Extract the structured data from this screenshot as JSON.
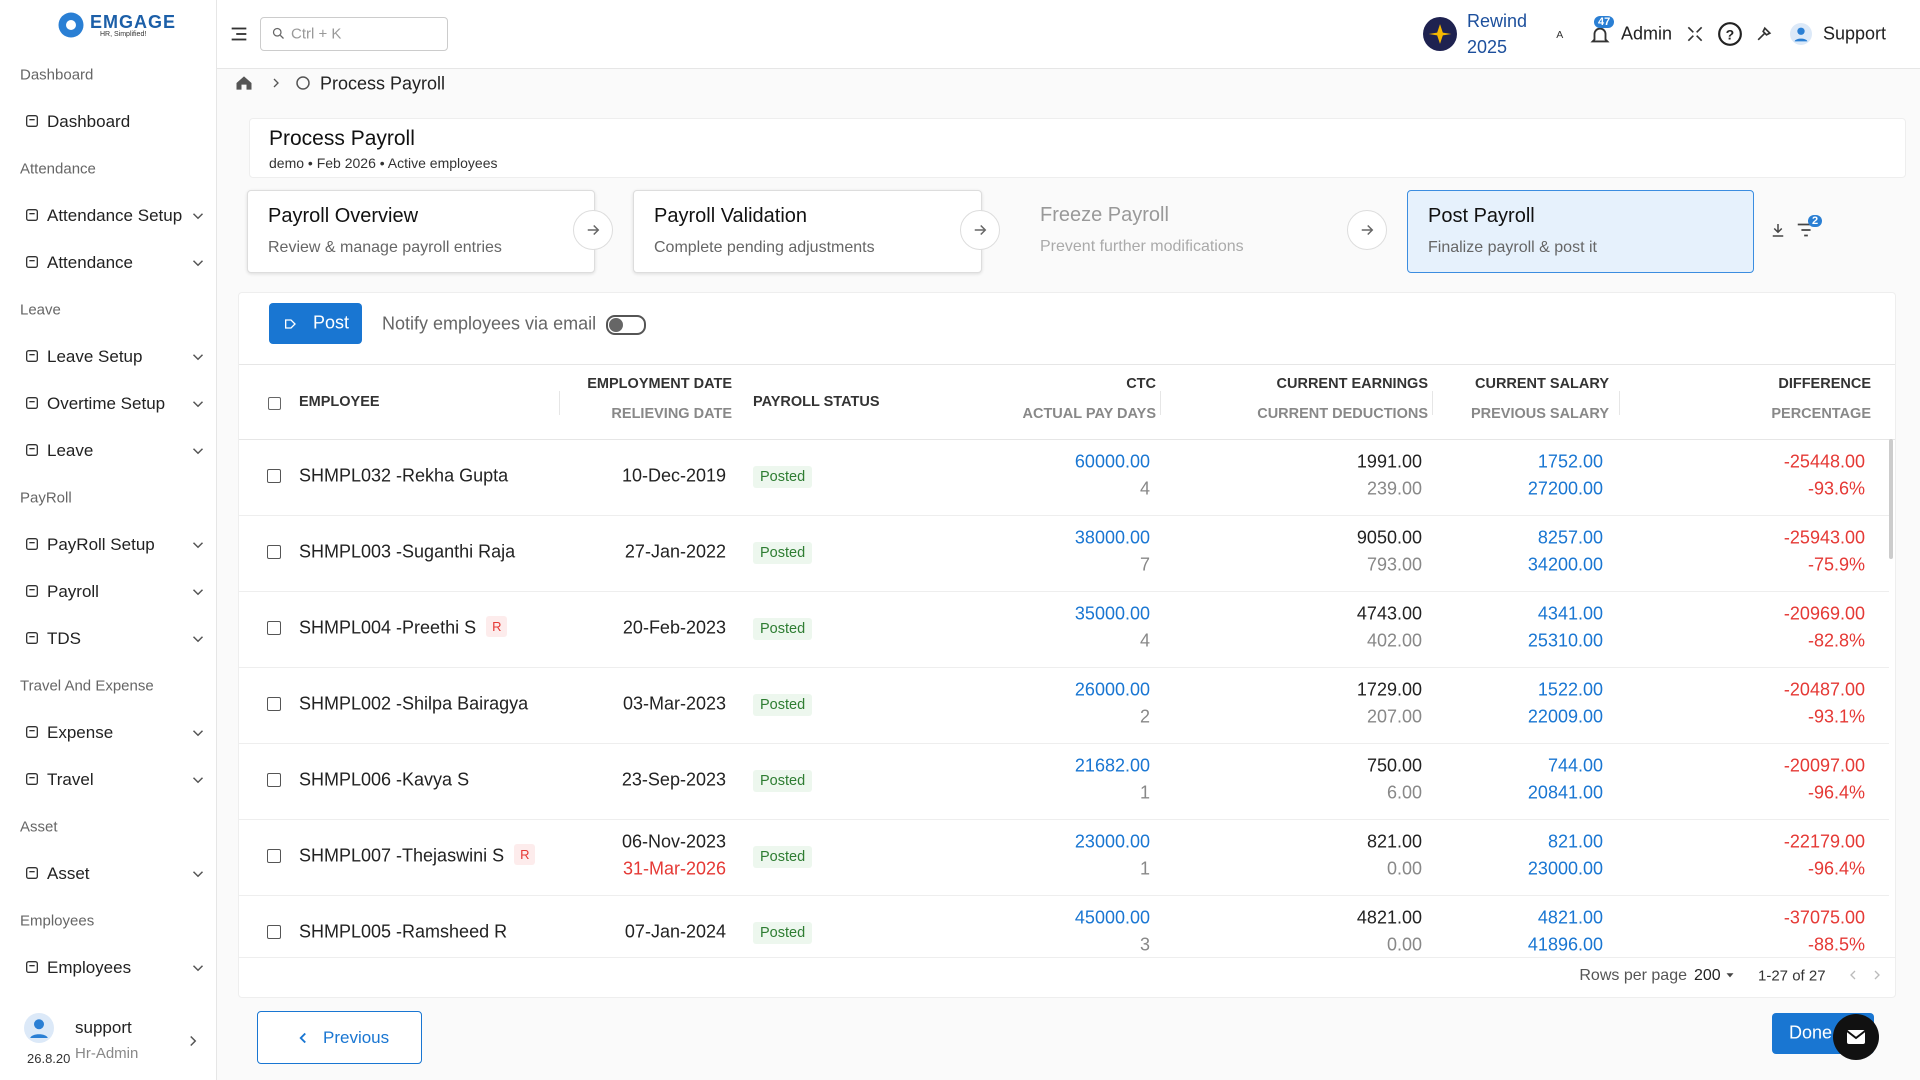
{
  "sidebar": {
    "logo": "EMGAGE",
    "tagline": "HR, Simplified!",
    "sections": [
      {
        "title": "Dashboard",
        "items": [
          {
            "label": "Dashboard",
            "expandable": false
          }
        ]
      },
      {
        "title": "Attendance",
        "items": [
          {
            "label": "Attendance Setup",
            "expandable": true
          },
          {
            "label": "Attendance",
            "expandable": true
          }
        ]
      },
      {
        "title": "Leave",
        "items": [
          {
            "label": "Leave Setup",
            "expandable": true
          },
          {
            "label": "Overtime Setup",
            "expandable": true
          },
          {
            "label": "Leave",
            "expandable": true
          }
        ]
      },
      {
        "title": "PayRoll",
        "items": [
          {
            "label": "PayRoll Setup",
            "expandable": true
          },
          {
            "label": "Payroll",
            "expandable": true
          },
          {
            "label": "TDS",
            "expandable": true
          }
        ]
      },
      {
        "title": "Travel And Expense",
        "items": [
          {
            "label": "Expense",
            "expandable": true
          },
          {
            "label": "Travel",
            "expandable": true
          }
        ]
      },
      {
        "title": "Asset",
        "items": [
          {
            "label": "Asset",
            "expandable": true
          }
        ]
      },
      {
        "title": "Employees",
        "items": [
          {
            "label": "Employees",
            "expandable": true
          }
        ]
      }
    ],
    "user": {
      "name": "support",
      "role": "Hr-Admin",
      "version": "26.8.20"
    }
  },
  "topbar": {
    "search_placeholder": "Ctrl + K",
    "rewind": "Rewind",
    "rewind_year": "2025",
    "notifications": "47",
    "admin": "Admin",
    "support": "Support"
  },
  "breadcrumb": "Process Payroll",
  "header": {
    "title": "Process Payroll",
    "subtitle": "demo • Feb 2026 • Active employees"
  },
  "steps": [
    {
      "title": "Payroll Overview",
      "description": "Review & manage payroll entries",
      "state": "done"
    },
    {
      "title": "Payroll Validation",
      "description": "Complete pending adjustments",
      "state": "done"
    },
    {
      "title": "Freeze Payroll",
      "description": "Prevent further modifications",
      "state": "skipped"
    },
    {
      "title": "Post Payroll",
      "description": "Finalize payroll & post it",
      "state": "active"
    }
  ],
  "filter_count": "2",
  "toolbar": {
    "post": "Post",
    "notify": "Notify employees via email"
  },
  "table": {
    "columns": [
      {
        "label": "EMPLOYEE"
      },
      {
        "label": "EMPLOYMENT DATE",
        "sublabel": "RELIEVING DATE"
      },
      {
        "label": "PAYROLL STATUS"
      },
      {
        "label": "CTC",
        "sublabel": "ACTUAL PAY DAYS"
      },
      {
        "label": "CURRENT EARNINGS",
        "sublabel": "CURRENT DEDUCTIONS"
      },
      {
        "label": "CURRENT SALARY",
        "sublabel": "PREVIOUS SALARY"
      },
      {
        "label": "DIFFERENCE",
        "sublabel": "PERCENTAGE"
      }
    ],
    "rows": [
      {
        "employee": "SHMPL032 -Rekha Gupta",
        "employment_date": "10-Dec-2019",
        "status": "Posted",
        "ctc": "60000.00",
        "pay_days": "4",
        "earnings": "1991.00",
        "deductions": "239.00",
        "current_salary": "1752.00",
        "previous_salary": "27200.00",
        "difference": "-25448.00",
        "percentage": "-93.6%"
      },
      {
        "employee": "SHMPL003 -Suganthi Raja",
        "employment_date": "27-Jan-2022",
        "status": "Posted",
        "ctc": "38000.00",
        "pay_days": "7",
        "earnings": "9050.00",
        "deductions": "793.00",
        "current_salary": "8257.00",
        "previous_salary": "34200.00",
        "difference": "-25943.00",
        "percentage": "-75.9%"
      },
      {
        "employee": "SHMPL004 -Preethi S",
        "badge": "R",
        "employment_date": "20-Feb-2023",
        "status": "Posted",
        "ctc": "35000.00",
        "pay_days": "4",
        "earnings": "4743.00",
        "deductions": "402.00",
        "current_salary": "4341.00",
        "previous_salary": "25310.00",
        "difference": "-20969.00",
        "percentage": "-82.8%"
      },
      {
        "employee": "SHMPL002 -Shilpa Bairagya",
        "employment_date": "03-Mar-2023",
        "status": "Posted",
        "ctc": "26000.00",
        "pay_days": "2",
        "earnings": "1729.00",
        "deductions": "207.00",
        "current_salary": "1522.00",
        "previous_salary": "22009.00",
        "difference": "-20487.00",
        "percentage": "-93.1%"
      },
      {
        "employee": "SHMPL006 -Kavya S",
        "employment_date": "23-Sep-2023",
        "status": "Posted",
        "ctc": "21682.00",
        "pay_days": "1",
        "earnings": "750.00",
        "deductions": "6.00",
        "current_salary": "744.00",
        "previous_salary": "20841.00",
        "difference": "-20097.00",
        "percentage": "-96.4%"
      },
      {
        "employee": "SHMPL007 -Thejaswini S",
        "badge": "R",
        "employment_date": "06-Nov-2023",
        "relieving_date": "31-Mar-2026",
        "status": "Posted",
        "ctc": "23000.00",
        "pay_days": "1",
        "earnings": "821.00",
        "deductions": "0.00",
        "current_salary": "821.00",
        "previous_salary": "23000.00",
        "difference": "-22179.00",
        "percentage": "-96.4%"
      },
      {
        "employee": "SHMPL005 -Ramsheed R",
        "employment_date": "07-Jan-2024",
        "status": "Posted",
        "ctc": "45000.00",
        "pay_days": "3",
        "earnings": "4821.00",
        "deductions": "0.00",
        "current_salary": "4821.00",
        "previous_salary": "41896.00",
        "difference": "-37075.00",
        "percentage": "-88.5%"
      }
    ]
  },
  "pagination": {
    "rows_per_page_label": "Rows per page",
    "rows_per_page": "200",
    "range": "1-27 of 27"
  },
  "footer": {
    "previous": "Previous",
    "done": "Done"
  }
}
